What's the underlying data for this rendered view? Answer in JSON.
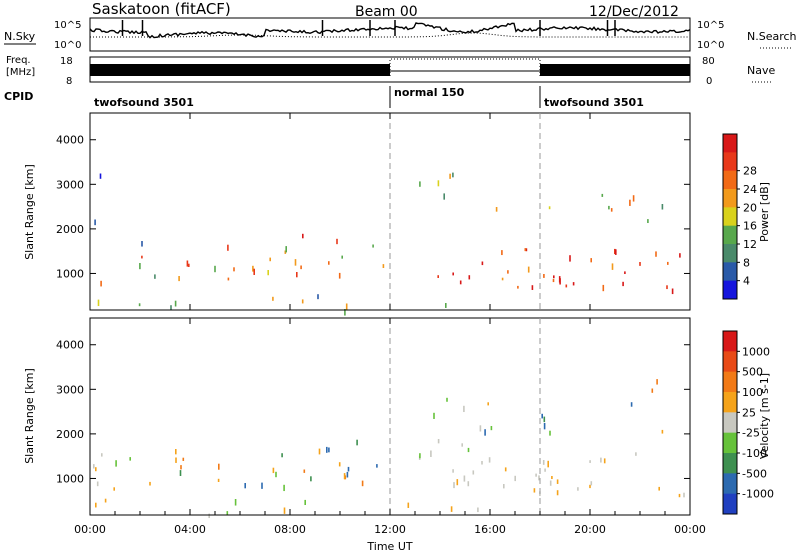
{
  "header": {
    "title": "Saskatoon (fitACF)",
    "beam": "Beam 00",
    "date": "12/Dec/2012"
  },
  "panels": {
    "nsky": {
      "label": "N.Sky",
      "right_label": "N.Search",
      "tick_top": "10^5",
      "tick_bottom": "10^0"
    },
    "freq": {
      "label_line1": "Freq.",
      "label_line2": "[MHz]",
      "left_ticks": [
        "18",
        "8"
      ],
      "right_ticks": [
        "80",
        "0"
      ],
      "right_label": "Nave"
    },
    "cpid": {
      "label": "CPID",
      "segments": [
        {
          "text": "twofsound 3501",
          "start_h": 0
        },
        {
          "text": "normal 150",
          "start_h": 12
        },
        {
          "text": "twofsound 3501",
          "start_h": 18
        }
      ]
    }
  },
  "chart_data": [
    {
      "type": "heatmap",
      "title": "",
      "ylabel": "Slant Range [km]",
      "xlabel": "Time UT",
      "xlim_hours": [
        0,
        24
      ],
      "ylim": [
        180,
        4600
      ],
      "yticks": [
        1000,
        2000,
        3000,
        4000
      ],
      "colorbar": {
        "label": "Power [dB]",
        "ticks": [
          "4",
          "8",
          "12",
          "16",
          "20",
          "24",
          "28"
        ],
        "colors": [
          "#1515dd",
          "#2a5aa8",
          "#4a8a6a",
          "#58a84c",
          "#d9d21c",
          "#f29a1c",
          "#f26a16",
          "#e8381a",
          "#d81818"
        ]
      },
      "echo_regions": [
        {
          "t": [
            0.3,
            2.5
          ],
          "r": [
            650,
            1450
          ],
          "value": "mixed 8-28 dB"
        },
        {
          "t": [
            3.3,
            11.9
          ],
          "r": [
            900,
            1900
          ],
          "value": "20-28 dB"
        },
        {
          "t": [
            13.4,
            24
          ],
          "r": [
            700,
            1600
          ],
          "value": "24-28 dB"
        },
        {
          "t": [
            13.0,
            15.2
          ],
          "r": [
            1800,
            3300
          ],
          "value": "12-20 dB"
        },
        {
          "t": [
            15.5,
            24
          ],
          "r": [
            2000,
            2800
          ],
          "value": "12-20 dB"
        },
        {
          "t": [
            0,
            15.5
          ],
          "r": [
            200,
            550
          ],
          "value": "8-16 dB ground scatter"
        }
      ]
    },
    {
      "type": "heatmap",
      "title": "",
      "ylabel": "Slant Range [km]",
      "xlabel": "Time UT",
      "xlim_hours": [
        0,
        24
      ],
      "ylim": [
        180,
        4600
      ],
      "yticks": [
        1000,
        2000,
        3000,
        4000
      ],
      "xticks": [
        "00:00",
        "04:00",
        "08:00",
        "12:00",
        "16:00",
        "20:00",
        "00:00"
      ],
      "colorbar": {
        "label": "Velocity [m s-1]",
        "ticks": [
          "1000",
          "500",
          "100",
          "25",
          "-25",
          "-100",
          "-500",
          "-1000"
        ],
        "colors": [
          "#2040c0",
          "#2c6ab0",
          "#3e9050",
          "#66c23a",
          "#c8c8c0",
          "#f5a31a",
          "#f27a16",
          "#e84a16",
          "#d81818"
        ]
      },
      "echo_regions": [
        {
          "t": [
            3.3,
            11.9
          ],
          "r": [
            900,
            1900
          ],
          "value": "-100 to -500 m/s"
        },
        {
          "t": [
            14.5,
            24
          ],
          "r": [
            700,
            1600
          ],
          "value": "ground scatter (grey)"
        },
        {
          "t": [
            15.5,
            24
          ],
          "r": [
            2000,
            2800
          ],
          "value": "mixed positive/negative"
        },
        {
          "t": [
            0,
            2.5
          ],
          "r": [
            600,
            2300
          ],
          "value": "green/grey mixed"
        },
        {
          "t": [
            0,
            15.5
          ],
          "r": [
            200,
            550
          ],
          "value": "ground scatter and low velocity"
        }
      ]
    }
  ]
}
